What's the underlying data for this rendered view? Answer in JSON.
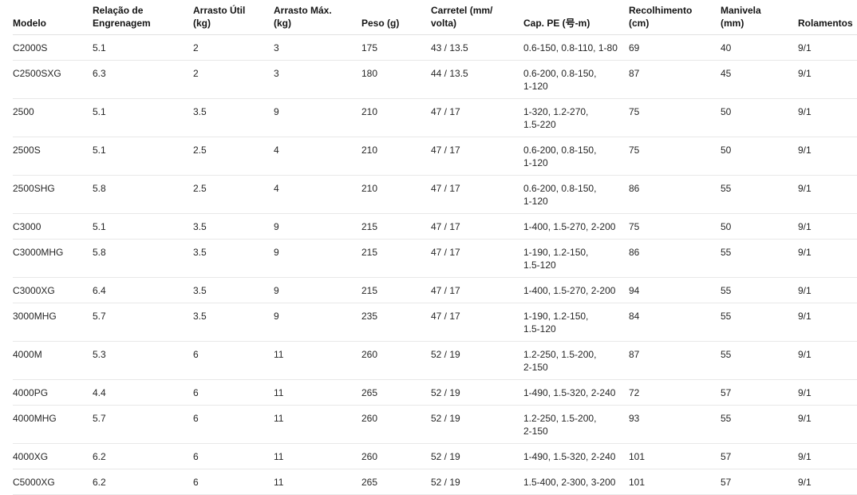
{
  "colors": {
    "background": "#ffffff",
    "header_text": "#141414",
    "body_text": "#262626",
    "divider": "#e8e8e8"
  },
  "table": {
    "columns": [
      {
        "id": "modelo",
        "label": "Modelo"
      },
      {
        "id": "relacao",
        "label": "Relação de\nEngrenagem"
      },
      {
        "id": "arrasto-util",
        "label": "Arrasto Útil\n(kg)"
      },
      {
        "id": "arrasto-max",
        "label": "Arrasto Máx.\n(kg)"
      },
      {
        "id": "peso",
        "label": "Peso (g)"
      },
      {
        "id": "carretel",
        "label": "Carretel (mm/\nvolta)"
      },
      {
        "id": "cap-pe",
        "label": "Cap. PE (号-m)"
      },
      {
        "id": "recolhimento",
        "label": "Recolhimento\n(cm)"
      },
      {
        "id": "manivela",
        "label": "Manivela\n(mm)"
      },
      {
        "id": "rolamentos",
        "label": "Rolamentos"
      }
    ],
    "rows": [
      [
        "C2000S",
        "5.1",
        "2",
        "3",
        "175",
        "43 / 13.5",
        "0.6-150, 0.8-110, 1-80",
        "69",
        "40",
        "9/1"
      ],
      [
        "C2500SXG",
        "6.3",
        "2",
        "3",
        "180",
        "44 / 13.5",
        "0.6-200, 0.8-150,\n1-120",
        "87",
        "45",
        "9/1"
      ],
      [
        "2500",
        "5.1",
        "3.5",
        "9",
        "210",
        "47 / 17",
        "1-320, 1.2-270,\n1.5-220",
        "75",
        "50",
        "9/1"
      ],
      [
        "2500S",
        "5.1",
        "2.5",
        "4",
        "210",
        "47 / 17",
        "0.6-200, 0.8-150,\n1-120",
        "75",
        "50",
        "9/1"
      ],
      [
        "2500SHG",
        "5.8",
        "2.5",
        "4",
        "210",
        "47 / 17",
        "0.6-200, 0.8-150,\n1-120",
        "86",
        "55",
        "9/1"
      ],
      [
        "C3000",
        "5.1",
        "3.5",
        "9",
        "215",
        "47 / 17",
        "1-400, 1.5-270, 2-200",
        "75",
        "50",
        "9/1"
      ],
      [
        "C3000MHG",
        "5.8",
        "3.5",
        "9",
        "215",
        "47 / 17",
        "1-190, 1.2-150,\n1.5-120",
        "86",
        "55",
        "9/1"
      ],
      [
        "C3000XG",
        "6.4",
        "3.5",
        "9",
        "215",
        "47 / 17",
        "1-400, 1.5-270, 2-200",
        "94",
        "55",
        "9/1"
      ],
      [
        "3000MHG",
        "5.7",
        "3.5",
        "9",
        "235",
        "47 / 17",
        "1-190, 1.2-150,\n1.5-120",
        "84",
        "55",
        "9/1"
      ],
      [
        "4000M",
        "5.3",
        "6",
        "11",
        "260",
        "52 / 19",
        "1.2-250, 1.5-200,\n2-150",
        "87",
        "55",
        "9/1"
      ],
      [
        "4000PG",
        "4.4",
        "6",
        "11",
        "265",
        "52 / 19",
        "1-490, 1.5-320, 2-240",
        "72",
        "57",
        "9/1"
      ],
      [
        "4000MHG",
        "5.7",
        "6",
        "11",
        "260",
        "52 / 19",
        "1.2-250, 1.5-200,\n2-150",
        "93",
        "55",
        "9/1"
      ],
      [
        "4000XG",
        "6.2",
        "6",
        "11",
        "260",
        "52 / 19",
        "1-490, 1.5-320, 2-240",
        "101",
        "57",
        "9/1"
      ],
      [
        "C5000XG",
        "6.2",
        "6",
        "11",
        "265",
        "52 / 19",
        "1.5-400, 2-300, 3-200",
        "101",
        "57",
        "9/1"
      ]
    ]
  }
}
